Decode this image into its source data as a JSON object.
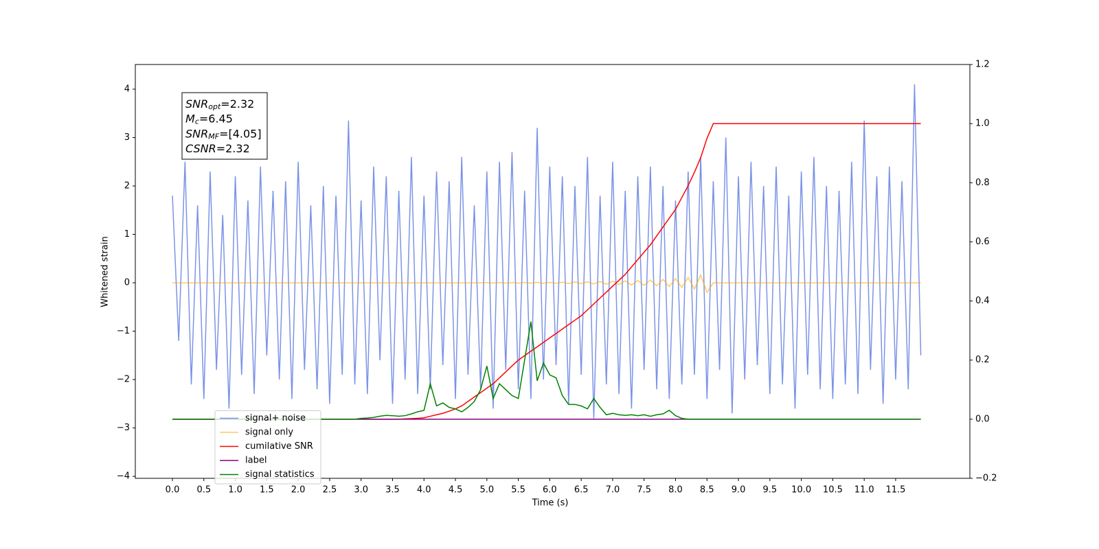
{
  "chart_data": {
    "type": "line",
    "xlabel": "Time (s)",
    "ylabel": "Whitened strain",
    "xlim": [
      -0.59,
      12.68
    ],
    "ylim": [
      -4.04,
      4.51
    ],
    "y2lim": [
      -0.2,
      1.2
    ],
    "xticks": [
      {
        "value": 0,
        "label": "0.0"
      },
      0.5,
      {
        "value": 1,
        "label": "1.0"
      },
      1.5,
      {
        "value": 2,
        "label": "2.0"
      },
      2.5,
      {
        "value": 3,
        "label": "3.0"
      },
      3.5,
      {
        "value": 4,
        "label": "4.0"
      },
      4.5,
      {
        "value": 5,
        "label": "5.0"
      },
      5.5,
      {
        "value": 6,
        "label": "6.0"
      },
      6.5,
      {
        "value": 7,
        "label": "7.0"
      },
      7.5,
      {
        "value": 8,
        "label": "8.0"
      },
      8.5,
      {
        "value": 9,
        "label": "9.0"
      },
      9.5,
      {
        "value": 10,
        "label": "10.0"
      },
      10.5,
      {
        "value": 11,
        "label": "11.0"
      },
      11.5
    ],
    "yticks": [
      {
        "value": -4,
        "label": "−4"
      },
      {
        "value": -3,
        "label": "−3"
      },
      {
        "value": -2,
        "label": "−2"
      },
      {
        "value": -1,
        "label": "−1"
      },
      0,
      1,
      2,
      3,
      4
    ],
    "y2ticks": [
      {
        "value": -0.2,
        "label": "−0.2"
      },
      {
        "value": 0,
        "label": "0.0"
      },
      0.2,
      0.4,
      0.6,
      0.8,
      {
        "value": 1,
        "label": "1.0"
      },
      1.2
    ],
    "legend": "lower left",
    "annotations": [
      {
        "symbol": "SNR",
        "subscript": "opt",
        "text": "=2.32"
      },
      {
        "symbol": "M",
        "subscript": "c",
        "text": "=6.45"
      },
      {
        "symbol": "SNR",
        "subscript": "MF",
        "text": "=[4.05]"
      },
      {
        "symbol": "CSNR",
        "text": "=2.32"
      }
    ],
    "x": [
      0,
      0.1,
      0.2,
      0.3,
      0.4,
      0.5,
      0.6,
      0.7,
      0.8,
      0.9,
      1,
      1.1,
      1.2,
      1.3,
      1.4,
      1.5,
      1.6,
      1.7,
      1.8,
      1.9,
      2,
      2.1,
      2.2,
      2.3,
      2.4,
      2.5,
      2.6,
      2.7,
      2.8,
      2.9,
      3,
      3.1,
      3.2,
      3.3,
      3.4,
      3.5,
      3.6,
      3.7,
      3.8,
      3.9,
      4,
      4.1,
      4.2,
      4.3,
      4.4,
      4.5,
      4.6,
      4.7,
      4.8,
      4.9,
      5,
      5.1,
      5.2,
      5.3,
      5.4,
      5.5,
      5.6,
      5.7,
      5.8,
      5.9,
      6,
      6.1,
      6.2,
      6.3,
      6.4,
      6.5,
      6.6,
      6.7,
      6.8,
      6.9,
      7,
      7.1,
      7.2,
      7.3,
      7.4,
      7.5,
      7.6,
      7.7,
      7.8,
      7.9,
      8,
      8.1,
      8.2,
      8.3,
      8.4,
      8.5,
      8.6,
      8.7,
      8.8,
      8.9,
      9,
      9.1,
      9.2,
      9.3,
      9.4,
      9.5,
      9.6,
      9.7,
      9.8,
      9.9,
      10,
      10.1,
      10.2,
      10.3,
      10.4,
      10.5,
      10.6,
      10.7,
      10.8,
      10.9,
      11,
      11.1,
      11.2,
      11.3,
      11.4,
      11.5,
      11.6,
      11.7,
      11.8,
      11.9
    ],
    "series": [
      {
        "name": "signal+ noise",
        "color": "#7b93e6",
        "axis": "y",
        "values": [
          1.8,
          -1.2,
          2.5,
          -2.1,
          1.6,
          -2.4,
          2.3,
          -1.8,
          1.4,
          -2.6,
          2.2,
          -1.9,
          1.7,
          -2.3,
          2.4,
          -1.5,
          1.9,
          -2.0,
          2.1,
          -2.4,
          2.5,
          -1.8,
          1.6,
          -2.2,
          2.0,
          -2.5,
          1.8,
          -1.9,
          3.35,
          -2.1,
          1.7,
          -2.3,
          2.4,
          -1.6,
          2.2,
          -2.5,
          1.9,
          -2.0,
          2.6,
          -2.3,
          1.8,
          -2.2,
          2.3,
          -1.7,
          2.1,
          -2.4,
          2.6,
          -1.9,
          1.6,
          -2.2,
          2.3,
          -2.6,
          2.5,
          -1.8,
          2.7,
          -2.2,
          1.9,
          -2.4,
          3.2,
          -2.0,
          2.4,
          -1.7,
          2.2,
          -2.5,
          2.0,
          -1.9,
          2.6,
          -2.8,
          1.8,
          -2.1,
          2.5,
          -2.3,
          1.9,
          -2.6,
          2.2,
          -1.8,
          2.4,
          -2.2,
          2.0,
          -2.4,
          1.7,
          -2.1,
          2.3,
          -1.9,
          2.6,
          -2.4,
          2.1,
          -1.8,
          3.0,
          -2.7,
          2.2,
          -2.0,
          2.5,
          -1.7,
          2.0,
          -2.3,
          2.4,
          -2.1,
          1.8,
          -2.6,
          2.3,
          -1.9,
          2.6,
          -2.2,
          2.0,
          -2.4,
          1.9,
          -2.1,
          2.5,
          -2.3,
          3.35,
          -1.8,
          2.2,
          -2.5,
          2.4,
          -2.0,
          2.1,
          -2.2,
          4.1,
          -1.5
        ]
      },
      {
        "name": "signal only",
        "color": "#ffa500",
        "axis": "y",
        "values": [
          0,
          0,
          0,
          0,
          0,
          0,
          0,
          0,
          0,
          0,
          0,
          0,
          0,
          0,
          0,
          0,
          0,
          0,
          0,
          0,
          0,
          0,
          0,
          0,
          0,
          0,
          0,
          0,
          0,
          0,
          0,
          0,
          0,
          0,
          0,
          0,
          0,
          0,
          0,
          0,
          0,
          0,
          0,
          0,
          0,
          0,
          0,
          0,
          0,
          0,
          0.005,
          -0.005,
          0.006,
          -0.006,
          0.007,
          -0.007,
          0.008,
          -0.008,
          0.009,
          -0.009,
          0.01,
          -0.012,
          0.014,
          -0.016,
          0.018,
          -0.02,
          0.022,
          -0.025,
          0.028,
          -0.03,
          0.033,
          -0.036,
          0.04,
          -0.044,
          0.048,
          -0.053,
          0.058,
          -0.064,
          0.07,
          -0.077,
          0.085,
          -0.095,
          0.11,
          -0.13,
          0.16,
          -0.2,
          0,
          0,
          0,
          0,
          0,
          0,
          0,
          0,
          0,
          0,
          0,
          0,
          0,
          0,
          0,
          0,
          0,
          0,
          0,
          0,
          0,
          0,
          0,
          0,
          0,
          0,
          0,
          0,
          0,
          0,
          0,
          0,
          0,
          0
        ]
      },
      {
        "name": "cumilative SNR",
        "color": "#ff0000",
        "axis": "y2",
        "values": [
          0,
          0,
          0,
          0,
          0,
          0,
          0,
          0,
          0,
          0,
          0,
          0,
          0,
          0,
          0,
          0,
          0,
          0,
          0,
          0,
          0,
          0,
          0,
          0,
          0,
          0,
          0,
          0,
          0,
          0,
          0,
          0,
          0,
          0,
          0,
          0,
          0,
          0.001,
          0.002,
          0.003,
          0.005,
          0.01,
          0.015,
          0.02,
          0.027,
          0.035,
          0.045,
          0.06,
          0.075,
          0.09,
          0.105,
          0.12,
          0.14,
          0.16,
          0.18,
          0.2,
          0.215,
          0.23,
          0.245,
          0.26,
          0.275,
          0.29,
          0.305,
          0.32,
          0.335,
          0.35,
          0.37,
          0.39,
          0.41,
          0.43,
          0.45,
          0.47,
          0.49,
          0.515,
          0.54,
          0.565,
          0.59,
          0.62,
          0.65,
          0.68,
          0.71,
          0.75,
          0.79,
          0.835,
          0.885,
          0.95,
          1,
          1,
          1,
          1,
          1,
          1,
          1,
          1,
          1,
          1,
          1,
          1,
          1,
          1,
          1,
          1,
          1,
          1,
          1,
          1,
          1,
          1,
          1,
          1,
          1,
          1,
          1,
          1,
          1,
          1,
          1,
          1,
          1,
          1
        ]
      },
      {
        "name": "label",
        "color": "#800080",
        "axis": "y2",
        "values": [
          0,
          0,
          0,
          0,
          0,
          0,
          0,
          0,
          0,
          0,
          0,
          0,
          0,
          0,
          0,
          0,
          0,
          0,
          0,
          0,
          0,
          0,
          0,
          0,
          0,
          0,
          0,
          0,
          0,
          0,
          0,
          0,
          0,
          0,
          0,
          0,
          0,
          0,
          0,
          0,
          0,
          0,
          0,
          0,
          0,
          0,
          0,
          0,
          0,
          0,
          0,
          0,
          0,
          0,
          0,
          0,
          0,
          0,
          0,
          0,
          0,
          0,
          0,
          0,
          0,
          0,
          0,
          0,
          0,
          0,
          0,
          0,
          0,
          0,
          0,
          0,
          0,
          0,
          0,
          0,
          0,
          0,
          0,
          0,
          0,
          0,
          0,
          0,
          0,
          0,
          0,
          0,
          0,
          0,
          0,
          0,
          0,
          0,
          0,
          0,
          0,
          0,
          0,
          0,
          0,
          0,
          0,
          0,
          0,
          0,
          0,
          0,
          0,
          0,
          0,
          0,
          0,
          0,
          0,
          0
        ]
      },
      {
        "name": "signal statistics",
        "color": "#008000",
        "axis": "y2",
        "values": [
          0,
          0,
          0,
          0,
          0,
          0,
          0,
          0,
          0,
          0,
          0,
          0,
          0,
          0,
          0,
          0,
          0,
          0,
          0,
          0,
          0,
          0,
          0,
          0,
          0,
          0,
          0,
          0,
          0,
          0,
          0.003,
          0.004,
          0.006,
          0.01,
          0.013,
          0.012,
          0.01,
          0.012,
          0.018,
          0.025,
          0.03,
          0.12,
          0.045,
          0.055,
          0.04,
          0.035,
          0.025,
          0.04,
          0.06,
          0.1,
          0.18,
          0.07,
          0.12,
          0.1,
          0.08,
          0.07,
          0.2,
          0.33,
          0.13,
          0.19,
          0.15,
          0.14,
          0.08,
          0.05,
          0.05,
          0.045,
          0.035,
          0.07,
          0.04,
          0.015,
          0.02,
          0.015,
          0.013,
          0.015,
          0.012,
          0.015,
          0.01,
          0.015,
          0.018,
          0.03,
          0.012,
          0.003,
          0,
          0,
          0,
          0,
          0,
          0,
          0,
          0,
          0,
          0,
          0,
          0,
          0,
          0,
          0,
          0,
          0,
          0,
          0,
          0,
          0,
          0,
          0,
          0,
          0,
          0,
          0,
          0,
          0,
          0,
          0,
          0,
          0,
          0,
          0,
          0,
          0,
          0
        ]
      }
    ]
  }
}
